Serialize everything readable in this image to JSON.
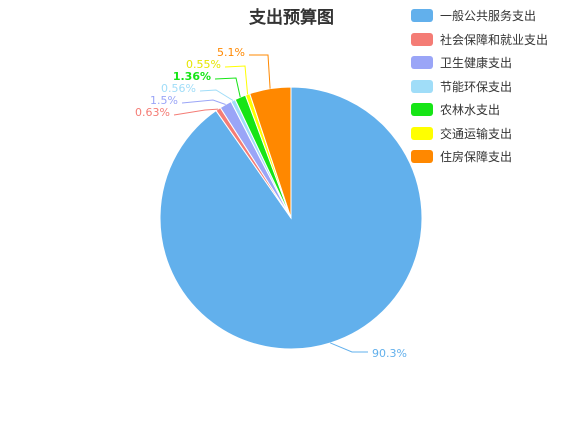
{
  "chart_data": {
    "type": "pie",
    "title": "支出预算图",
    "legend_position": "top-right",
    "slices": [
      {
        "name": "一般公共服务支出",
        "value": 90.3,
        "label": "90.3%",
        "color": "#62b0ec"
      },
      {
        "name": "社会保障和就业支出",
        "value": 0.63,
        "label": "0.63%",
        "color": "#f47c75"
      },
      {
        "name": "卫生健康支出",
        "value": 1.5,
        "label": "1.5%",
        "color": "#9aa5f7"
      },
      {
        "name": "节能环保支出",
        "value": 0.56,
        "label": "0.56%",
        "color": "#a0ddf8"
      },
      {
        "name": "农林水支出",
        "value": 1.36,
        "label": "1.36%",
        "color": "#16e516"
      },
      {
        "name": "交通运输支出",
        "value": 0.55,
        "label": "0.55%",
        "color": "#ffff00"
      },
      {
        "name": "住房保障支出",
        "value": 5.1,
        "label": "5.1%",
        "color": "#ff8800"
      }
    ]
  }
}
